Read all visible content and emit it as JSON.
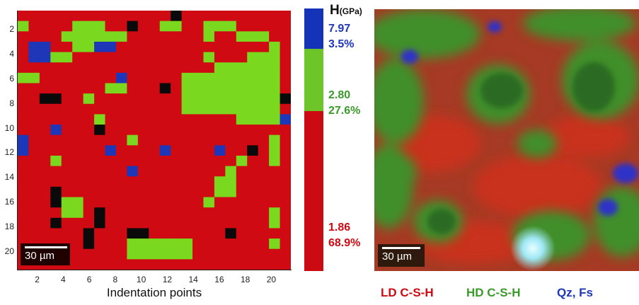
{
  "hardness_map": {
    "xlabel": "Indentation points",
    "x_ticks": [
      "2",
      "4",
      "6",
      "8",
      "10",
      "12",
      "14",
      "16",
      "18",
      "20"
    ],
    "y_ticks": [
      "2",
      "4",
      "6",
      "8",
      "10",
      "12",
      "14",
      "16",
      "18",
      "20"
    ],
    "scale_bar": "30 µm",
    "colors": {
      "0": "#cf0a12",
      "1": "#7ad81f",
      "2": "#1d37b8",
      "3": "#0a0a0a"
    },
    "grid": [
      "0000000000000030000000000",
      "1000011100300110011100000",
      "0000111111000000010011100",
      "0220011220000000000000010",
      "0221100000000000010001110",
      "0000000000000000001111110",
      "1100000002000001111111110",
      "0000000011000301111111110",
      "0033001000000001111111113",
      "0000000000000001111111110",
      "0000000100000000000011112",
      "0002000300000000000000000",
      "2000000000100000000000010",
      "2000000020000200002003010",
      "0001000000000000000010010",
      "0000000000200000000100000",
      "0000000000000000001100000",
      "0003000000000000001100000",
      "0003110000000000010000000",
      "0000110300000000000000010",
      "0003000300000000000000010",
      "0000003000330000000300000",
      "0000003000111111000000010",
      "0000000000111111000000000",
      "0000000000000000000000000"
    ]
  },
  "colorbar": {
    "title": "H",
    "title_unit": "(GPa)",
    "segments": [
      {
        "value": "7.97",
        "percent": "3.5%",
        "color": "#1d37b8"
      },
      {
        "value": "2.80",
        "percent": "27.6%",
        "color": "#3a9a2a"
      },
      {
        "value": "1.86",
        "percent": "68.9%",
        "color": "#cf0a12"
      }
    ]
  },
  "micrograph": {
    "scale_bar": "30 µm",
    "phases": [
      {
        "label": "LD C-S-H",
        "color": "#cf0a12"
      },
      {
        "label": "HD C-S-H",
        "color": "#3a9a2a"
      },
      {
        "label": "Qz, Fs",
        "color": "#1d37b8"
      }
    ]
  }
}
